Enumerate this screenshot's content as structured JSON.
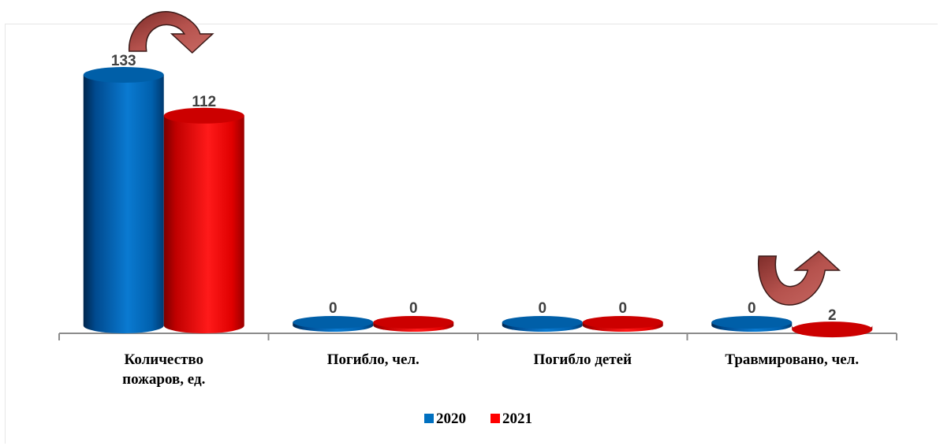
{
  "chart_data": {
    "type": "bar",
    "categories": [
      "Количество пожаров, ед.",
      "Погибло, чел.",
      "Погибло детей",
      "Травмировано, чел."
    ],
    "category_lines": [
      [
        "Количество",
        "пожаров, ед."
      ],
      [
        "Погибло, чел."
      ],
      [
        "Погибло детей"
      ],
      [
        "Травмировано, чел."
      ]
    ],
    "series": [
      {
        "name": "2020",
        "values": [
          133,
          0,
          0,
          0
        ],
        "color": "#0070c0"
      },
      {
        "name": "2021",
        "values": [
          112,
          0,
          0,
          2
        ],
        "color": "#ff0000"
      }
    ],
    "ylim": [
      0,
      133
    ],
    "legend_position": "bottom",
    "grid": false,
    "trend_arrows": [
      {
        "category": "Количество пожаров, ед.",
        "direction": "down"
      },
      {
        "category": "Травмировано, чел.",
        "direction": "up"
      }
    ],
    "arrow_color": "#a6403c"
  }
}
